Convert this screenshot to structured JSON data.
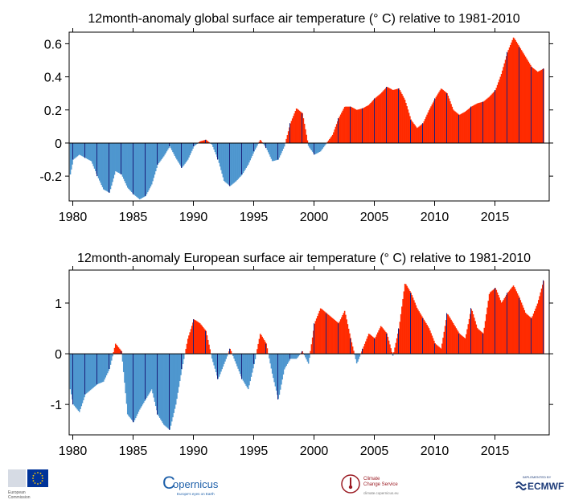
{
  "chart_data": [
    {
      "type": "bar",
      "title": "12month-anomaly global surface air temperature (° C) relative to 1981-2010",
      "xlim": [
        1979.7,
        2019.5
      ],
      "ylim": [
        -0.35,
        0.67
      ],
      "yticks": [
        -0.2,
        0,
        0.2,
        0.4,
        0.6
      ],
      "ytick_labels": [
        "-0.2",
        "0",
        "0.2",
        "0.4",
        "0.6"
      ],
      "xticks": [
        1980,
        1985,
        1990,
        1995,
        2000,
        2005,
        2010,
        2015
      ],
      "xtick_labels": [
        "1980",
        "1985",
        "1990",
        "1995",
        "2000",
        "2005",
        "2010",
        "2015"
      ],
      "bar_width_years": 0.0833,
      "positive_color": "#ff2a00",
      "negative_color": "#4f97cf",
      "divider_color": "#1a1f7a",
      "keypoints": [
        [
          1979.75,
          -0.19
        ],
        [
          1980.0,
          -0.1
        ],
        [
          1980.5,
          -0.07
        ],
        [
          1981.0,
          -0.09
        ],
        [
          1981.5,
          -0.11
        ],
        [
          1982.0,
          -0.2
        ],
        [
          1982.5,
          -0.28
        ],
        [
          1983.0,
          -0.3
        ],
        [
          1983.5,
          -0.17
        ],
        [
          1984.0,
          -0.19
        ],
        [
          1984.5,
          -0.27
        ],
        [
          1985.0,
          -0.31
        ],
        [
          1985.5,
          -0.34
        ],
        [
          1986.0,
          -0.32
        ],
        [
          1986.5,
          -0.25
        ],
        [
          1987.0,
          -0.13
        ],
        [
          1987.5,
          -0.08
        ],
        [
          1988.0,
          -0.02
        ],
        [
          1988.5,
          -0.09
        ],
        [
          1989.0,
          -0.15
        ],
        [
          1989.5,
          -0.1
        ],
        [
          1990.0,
          -0.02
        ],
        [
          1990.5,
          0.01
        ],
        [
          1991.0,
          0.02
        ],
        [
          1991.5,
          -0.01
        ],
        [
          1992.0,
          -0.1
        ],
        [
          1992.5,
          -0.23
        ],
        [
          1993.0,
          -0.26
        ],
        [
          1993.5,
          -0.23
        ],
        [
          1994.0,
          -0.19
        ],
        [
          1994.5,
          -0.13
        ],
        [
          1995.0,
          -0.05
        ],
        [
          1995.5,
          0.02
        ],
        [
          1996.0,
          -0.03
        ],
        [
          1996.5,
          -0.11
        ],
        [
          1997.0,
          -0.1
        ],
        [
          1997.5,
          -0.02
        ],
        [
          1998.0,
          0.12
        ],
        [
          1998.5,
          0.21
        ],
        [
          1999.0,
          0.18
        ],
        [
          1999.5,
          -0.02
        ],
        [
          2000.0,
          -0.07
        ],
        [
          2000.5,
          -0.05
        ],
        [
          2001.0,
          0.0
        ],
        [
          2001.5,
          0.05
        ],
        [
          2002.0,
          0.15
        ],
        [
          2002.5,
          0.22
        ],
        [
          2003.0,
          0.22
        ],
        [
          2003.5,
          0.2
        ],
        [
          2004.0,
          0.21
        ],
        [
          2004.5,
          0.23
        ],
        [
          2005.0,
          0.27
        ],
        [
          2005.5,
          0.3
        ],
        [
          2006.0,
          0.34
        ],
        [
          2006.5,
          0.32
        ],
        [
          2007.0,
          0.33
        ],
        [
          2007.5,
          0.26
        ],
        [
          2008.0,
          0.14
        ],
        [
          2008.5,
          0.09
        ],
        [
          2009.0,
          0.12
        ],
        [
          2009.5,
          0.2
        ],
        [
          2010.0,
          0.27
        ],
        [
          2010.5,
          0.33
        ],
        [
          2011.0,
          0.3
        ],
        [
          2011.5,
          0.2
        ],
        [
          2012.0,
          0.17
        ],
        [
          2012.5,
          0.19
        ],
        [
          2013.0,
          0.22
        ],
        [
          2013.5,
          0.24
        ],
        [
          2014.0,
          0.25
        ],
        [
          2014.5,
          0.28
        ],
        [
          2015.0,
          0.32
        ],
        [
          2015.5,
          0.42
        ],
        [
          2016.0,
          0.55
        ],
        [
          2016.5,
          0.64
        ],
        [
          2017.0,
          0.58
        ],
        [
          2017.5,
          0.52
        ],
        [
          2018.0,
          0.46
        ],
        [
          2018.5,
          0.43
        ],
        [
          2019.0,
          0.45
        ]
      ]
    },
    {
      "type": "bar",
      "title": "12month-anomaly European surface air temperature (° C) relative to 1981-2010",
      "xlim": [
        1979.7,
        2019.5
      ],
      "ylim": [
        -1.6,
        1.65
      ],
      "yticks": [
        -1,
        0,
        1
      ],
      "ytick_labels": [
        "-1",
        "0",
        "1"
      ],
      "xticks": [
        1980,
        1985,
        1990,
        1995,
        2000,
        2005,
        2010,
        2015
      ],
      "xtick_labels": [
        "1980",
        "1985",
        "1990",
        "1995",
        "2000",
        "2005",
        "2010",
        "2015"
      ],
      "bar_width_years": 0.0833,
      "positive_color": "#ff2a00",
      "negative_color": "#4f97cf",
      "divider_color": "#1a1f7a",
      "keypoints": [
        [
          1979.75,
          -0.7
        ],
        [
          1980.0,
          -1.0
        ],
        [
          1980.5,
          -1.15
        ],
        [
          1981.0,
          -0.8
        ],
        [
          1981.5,
          -0.7
        ],
        [
          1982.0,
          -0.6
        ],
        [
          1982.5,
          -0.55
        ],
        [
          1983.0,
          -0.3
        ],
        [
          1983.5,
          0.2
        ],
        [
          1984.0,
          0.05
        ],
        [
          1984.5,
          -1.2
        ],
        [
          1985.0,
          -1.35
        ],
        [
          1985.5,
          -1.1
        ],
        [
          1986.0,
          -0.9
        ],
        [
          1986.5,
          -0.7
        ],
        [
          1987.0,
          -1.2
        ],
        [
          1987.5,
          -1.4
        ],
        [
          1988.0,
          -1.5
        ],
        [
          1988.5,
          -1.0
        ],
        [
          1989.0,
          -0.3
        ],
        [
          1989.5,
          0.3
        ],
        [
          1990.0,
          0.68
        ],
        [
          1990.5,
          0.6
        ],
        [
          1991.0,
          0.45
        ],
        [
          1991.5,
          -0.1
        ],
        [
          1992.0,
          -0.5
        ],
        [
          1992.5,
          -0.2
        ],
        [
          1993.0,
          0.1
        ],
        [
          1993.5,
          -0.2
        ],
        [
          1994.0,
          -0.5
        ],
        [
          1994.5,
          -0.7
        ],
        [
          1995.0,
          -0.2
        ],
        [
          1995.5,
          0.4
        ],
        [
          1996.0,
          0.2
        ],
        [
          1996.5,
          -0.4
        ],
        [
          1997.0,
          -0.9
        ],
        [
          1997.5,
          -0.3
        ],
        [
          1998.0,
          -0.1
        ],
        [
          1998.5,
          -0.1
        ],
        [
          1999.0,
          0.05
        ],
        [
          1999.5,
          -0.2
        ],
        [
          2000.0,
          0.6
        ],
        [
          2000.5,
          0.9
        ],
        [
          2001.0,
          0.8
        ],
        [
          2001.5,
          0.7
        ],
        [
          2002.0,
          0.6
        ],
        [
          2002.5,
          0.85
        ],
        [
          2003.0,
          0.3
        ],
        [
          2003.5,
          -0.2
        ],
        [
          2004.0,
          0.1
        ],
        [
          2004.5,
          0.4
        ],
        [
          2005.0,
          0.3
        ],
        [
          2005.5,
          0.55
        ],
        [
          2006.0,
          0.4
        ],
        [
          2006.5,
          -0.05
        ],
        [
          2007.0,
          0.5
        ],
        [
          2007.5,
          1.4
        ],
        [
          2008.0,
          1.2
        ],
        [
          2008.5,
          0.9
        ],
        [
          2009.0,
          0.7
        ],
        [
          2009.5,
          0.5
        ],
        [
          2010.0,
          0.2
        ],
        [
          2010.5,
          0.1
        ],
        [
          2011.0,
          0.8
        ],
        [
          2011.5,
          0.6
        ],
        [
          2012.0,
          0.4
        ],
        [
          2012.5,
          0.3
        ],
        [
          2013.0,
          0.9
        ],
        [
          2013.5,
          0.5
        ],
        [
          2014.0,
          0.4
        ],
        [
          2014.5,
          1.2
        ],
        [
          2015.0,
          1.3
        ],
        [
          2015.5,
          1.0
        ],
        [
          2016.0,
          1.2
        ],
        [
          2016.5,
          1.35
        ],
        [
          2017.0,
          1.1
        ],
        [
          2017.5,
          0.8
        ],
        [
          2018.0,
          0.7
        ],
        [
          2018.5,
          1.0
        ],
        [
          2019.0,
          1.45
        ]
      ]
    }
  ],
  "logos": {
    "ec_label_line1": "European",
    "ec_label_line2": "Commission",
    "copernicus": "opernicus",
    "copernicus_c": "C",
    "copernicus_sub": "Europe's eyes on Earth",
    "c3s_line1": "Climate",
    "c3s_line2": "Change Service",
    "c3s_url": "climate.copernicus.eu",
    "ecmwf_small": "IMPLEMENTED BY",
    "ecmwf": "ECMWF"
  },
  "colors": {
    "eu_blue": "#003399",
    "eu_yellow": "#ffcc00",
    "c3s_red": "#9b1c24",
    "ecmwf_blue": "#1f3d7a",
    "copernicus_blue": "#1d5fa9"
  }
}
